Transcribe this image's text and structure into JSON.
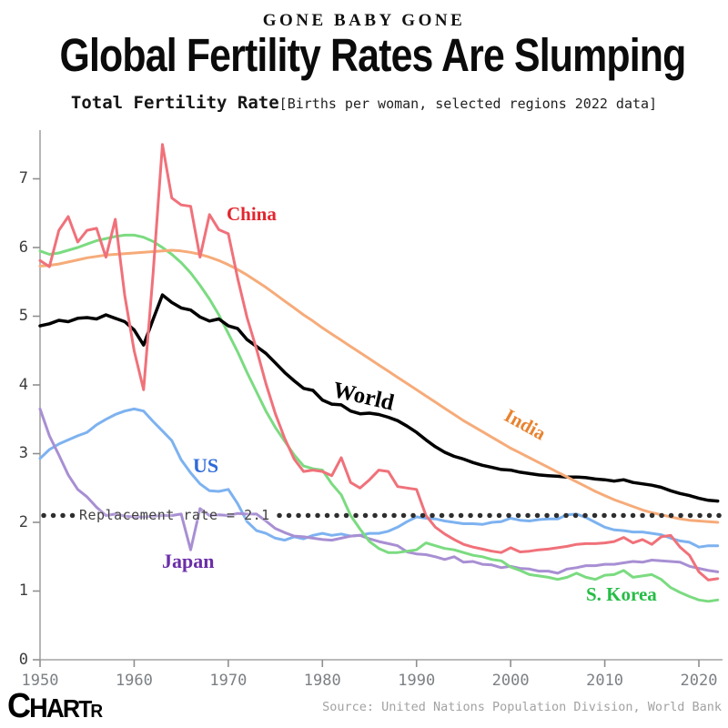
{
  "header": {
    "kicker": "GONE BABY GONE",
    "title": "Global Fertility Rates Are Slumping",
    "subtitle_bold": "Total Fertility Rate",
    "subtitle_note": "[Births per woman, selected regions 2022 data]"
  },
  "footer": {
    "logo_letters": [
      "C",
      "H",
      "A",
      "R",
      "T",
      "R"
    ],
    "source": "Source: United Nations Population Division, World Bank"
  },
  "chart_data": {
    "type": "line",
    "title": "Total Fertility Rate",
    "subtitle": "Births per woman, selected regions 2022 data",
    "xlabel": "",
    "ylabel": "",
    "x_range": [
      1950,
      2022
    ],
    "ylim": [
      0,
      7.7
    ],
    "xticks": [
      1950,
      1960,
      1970,
      1980,
      1990,
      2000,
      2010,
      2020
    ],
    "yticks": [
      0,
      1,
      2,
      3,
      4,
      5,
      6,
      7
    ],
    "grid": false,
    "legend_position": "inline-labels",
    "annotation": {
      "label": "Replacement rate = 2.1",
      "value": 2.1,
      "color": "#2e2e2e"
    },
    "axis_color": "#a3a3a3",
    "series": [
      {
        "name": "World",
        "color": "#000000",
        "label_color": "#000000",
        "values": [
          4.86,
          4.89,
          4.94,
          4.92,
          4.97,
          4.98,
          4.96,
          5.02,
          4.97,
          4.92,
          4.8,
          4.58,
          4.95,
          5.31,
          5.2,
          5.12,
          5.09,
          4.99,
          4.93,
          4.96,
          4.86,
          4.82,
          4.66,
          4.56,
          4.46,
          4.32,
          4.18,
          4.06,
          3.95,
          3.92,
          3.78,
          3.72,
          3.71,
          3.62,
          3.58,
          3.59,
          3.57,
          3.53,
          3.48,
          3.4,
          3.31,
          3.2,
          3.1,
          3.02,
          2.96,
          2.92,
          2.87,
          2.83,
          2.8,
          2.77,
          2.76,
          2.73,
          2.71,
          2.69,
          2.68,
          2.67,
          2.66,
          2.66,
          2.65,
          2.63,
          2.62,
          2.6,
          2.62,
          2.58,
          2.56,
          2.54,
          2.51,
          2.46,
          2.42,
          2.39,
          2.35,
          2.32,
          2.31
        ]
      },
      {
        "name": "China",
        "color": "#f0717a",
        "label_color": "#e2262e",
        "values": [
          5.81,
          5.72,
          6.25,
          6.45,
          6.08,
          6.25,
          6.28,
          5.86,
          6.41,
          5.3,
          4.5,
          3.93,
          5.6,
          7.5,
          6.72,
          6.62,
          6.6,
          5.86,
          6.48,
          6.26,
          6.2,
          5.55,
          4.98,
          4.52,
          4.02,
          3.58,
          3.22,
          2.92,
          2.74,
          2.76,
          2.74,
          2.68,
          2.94,
          2.58,
          2.5,
          2.62,
          2.76,
          2.74,
          2.52,
          2.5,
          2.48,
          2.1,
          1.93,
          1.83,
          1.75,
          1.68,
          1.64,
          1.61,
          1.58,
          1.56,
          1.63,
          1.57,
          1.58,
          1.6,
          1.61,
          1.63,
          1.65,
          1.68,
          1.69,
          1.69,
          1.7,
          1.72,
          1.78,
          1.7,
          1.75,
          1.68,
          1.79,
          1.81,
          1.64,
          1.52,
          1.28,
          1.16,
          1.18
        ]
      },
      {
        "name": "India",
        "color": "#f6ab79",
        "label_color": "#e8822f",
        "values": [
          5.73,
          5.74,
          5.76,
          5.79,
          5.82,
          5.85,
          5.87,
          5.89,
          5.9,
          5.91,
          5.92,
          5.93,
          5.94,
          5.95,
          5.96,
          5.95,
          5.93,
          5.9,
          5.86,
          5.81,
          5.75,
          5.68,
          5.6,
          5.51,
          5.42,
          5.32,
          5.22,
          5.12,
          5.02,
          4.93,
          4.83,
          4.74,
          4.65,
          4.56,
          4.47,
          4.38,
          4.29,
          4.2,
          4.11,
          4.02,
          3.93,
          3.84,
          3.75,
          3.66,
          3.57,
          3.48,
          3.4,
          3.32,
          3.24,
          3.16,
          3.08,
          3.01,
          2.94,
          2.87,
          2.8,
          2.73,
          2.66,
          2.59,
          2.52,
          2.45,
          2.39,
          2.33,
          2.28,
          2.23,
          2.18,
          2.14,
          2.11,
          2.08,
          2.05,
          2.03,
          2.02,
          2.01,
          2.0
        ]
      },
      {
        "name": "US",
        "color": "#7db2f0",
        "label_color": "#2e6bd8",
        "values": [
          2.93,
          3.06,
          3.14,
          3.2,
          3.26,
          3.31,
          3.42,
          3.5,
          3.57,
          3.62,
          3.65,
          3.62,
          3.47,
          3.33,
          3.19,
          2.91,
          2.72,
          2.56,
          2.46,
          2.45,
          2.48,
          2.27,
          2.01,
          1.88,
          1.84,
          1.77,
          1.74,
          1.79,
          1.76,
          1.81,
          1.84,
          1.81,
          1.83,
          1.8,
          1.81,
          1.84,
          1.84,
          1.87,
          1.93,
          2.01,
          2.08,
          2.06,
          2.05,
          2.02,
          2.0,
          1.98,
          1.98,
          1.97,
          2.0,
          2.01,
          2.06,
          2.03,
          2.02,
          2.04,
          2.05,
          2.05,
          2.11,
          2.12,
          2.07,
          2.0,
          1.93,
          1.89,
          1.88,
          1.86,
          1.86,
          1.84,
          1.82,
          1.77,
          1.73,
          1.71,
          1.64,
          1.66,
          1.66
        ]
      },
      {
        "name": "Japan",
        "color": "#a88fd3",
        "label_color": "#6b2fa8",
        "values": [
          3.65,
          3.26,
          2.98,
          2.69,
          2.48,
          2.37,
          2.22,
          2.1,
          2.12,
          2.09,
          2.08,
          2.08,
          2.09,
          2.1,
          2.1,
          2.12,
          1.6,
          2.2,
          2.1,
          2.11,
          2.1,
          2.13,
          2.12,
          2.12,
          2.02,
          1.91,
          1.85,
          1.8,
          1.79,
          1.77,
          1.75,
          1.74,
          1.77,
          1.8,
          1.81,
          1.76,
          1.72,
          1.69,
          1.66,
          1.57,
          1.54,
          1.53,
          1.5,
          1.46,
          1.5,
          1.42,
          1.43,
          1.39,
          1.38,
          1.34,
          1.36,
          1.33,
          1.32,
          1.29,
          1.29,
          1.26,
          1.32,
          1.34,
          1.37,
          1.37,
          1.39,
          1.39,
          1.41,
          1.43,
          1.42,
          1.45,
          1.44,
          1.43,
          1.42,
          1.36,
          1.33,
          1.3,
          1.28
        ]
      },
      {
        "name": "S. Korea",
        "color": "#7bdb81",
        "label_color": "#25bd45",
        "values": [
          5.95,
          5.9,
          5.92,
          5.96,
          6.0,
          6.05,
          6.1,
          6.13,
          6.16,
          6.18,
          6.18,
          6.15,
          6.09,
          6.0,
          5.9,
          5.78,
          5.63,
          5.45,
          5.25,
          5.02,
          4.75,
          4.48,
          4.18,
          3.9,
          3.62,
          3.38,
          3.18,
          2.98,
          2.82,
          2.78,
          2.76,
          2.56,
          2.4,
          2.1,
          1.9,
          1.72,
          1.62,
          1.56,
          1.56,
          1.58,
          1.6,
          1.7,
          1.66,
          1.62,
          1.6,
          1.56,
          1.52,
          1.5,
          1.46,
          1.44,
          1.35,
          1.3,
          1.24,
          1.22,
          1.2,
          1.17,
          1.2,
          1.26,
          1.2,
          1.17,
          1.23,
          1.24,
          1.3,
          1.2,
          1.22,
          1.24,
          1.17,
          1.05,
          0.98,
          0.92,
          0.87,
          0.85,
          0.87
        ]
      }
    ]
  }
}
